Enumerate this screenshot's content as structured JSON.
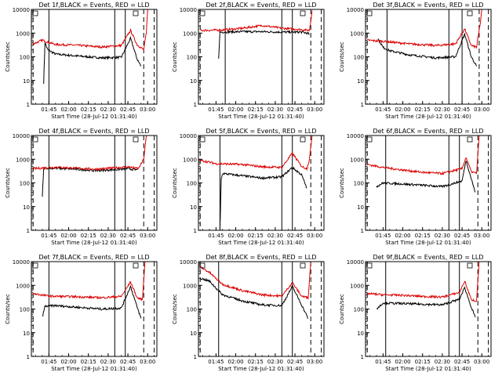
{
  "figure": {
    "start_time_label": "Start Time (28-Jul-12 01:31:40)",
    "ylabel": "Counts/sec",
    "y_ticks": [
      "1",
      "10",
      "100",
      "1000",
      "10000"
    ],
    "x_ticks": [
      "01:45",
      "02:00",
      "02:15",
      "02:30",
      "02:45",
      "03:00"
    ]
  },
  "colors": {
    "black_series": "#000000",
    "red_series": "#dd0000",
    "axes": "#000000",
    "background": "#ffffff"
  },
  "chart_data": [
    {
      "type": "line",
      "title": "Det 1f,BLACK = Events, RED = LLD",
      "xlabel": "Start Time (28-Jul-12 01:31:40)",
      "ylabel": "Counts/sec",
      "x_range": [
        "01:31:40",
        "03:07"
      ],
      "ylim": [
        1,
        10000
      ],
      "y_scale": "log",
      "vertical_lines": {
        "solid": [
          "01:45",
          "02:35",
          "02:43"
        ],
        "dashed": [
          "01:33",
          "02:57",
          "03:05"
        ]
      },
      "series": [
        {
          "color": "black",
          "points": [
            [
              "01:41",
              8
            ],
            [
              "01:42",
              400
            ],
            [
              "01:44",
              200
            ],
            [
              "01:50",
              130
            ],
            [
              "02:05",
              110
            ],
            [
              "02:25",
              90
            ],
            [
              "02:40",
              95
            ],
            [
              "02:47",
              600
            ],
            [
              "02:52",
              80
            ],
            [
              "02:55",
              40
            ]
          ]
        },
        {
          "color": "red",
          "points": [
            [
              "01:33",
              350
            ],
            [
              "01:40",
              500
            ],
            [
              "01:50",
              330
            ],
            [
              "02:05",
              310
            ],
            [
              "02:25",
              260
            ],
            [
              "02:40",
              300
            ],
            [
              "02:47",
              1300
            ],
            [
              "02:52",
              320
            ],
            [
              "02:57",
              200
            ],
            [
              "02:59",
              1000
            ],
            [
              "03:00",
              10000
            ]
          ]
        }
      ]
    },
    {
      "type": "line",
      "title": "Det 2f,BLACK = Events, RED = LLD",
      "xlabel": "Start Time (28-Jul-12 01:31:40)",
      "ylabel": "Counts/sec",
      "x_range": [
        "01:31:40",
        "03:07"
      ],
      "ylim": [
        1,
        10000
      ],
      "y_scale": "log",
      "vertical_lines": {
        "solid": [
          "01:52",
          "02:35",
          "02:43"
        ],
        "dashed": [
          "01:33",
          "02:57",
          "03:05"
        ]
      },
      "series": [
        {
          "color": "black",
          "points": [
            [
              "01:47",
              90
            ],
            [
              "01:48",
              1100
            ],
            [
              "02:05",
              1150
            ],
            [
              "02:20",
              1150
            ],
            [
              "02:35",
              1100
            ],
            [
              "02:50",
              1100
            ],
            [
              "02:54",
              1000
            ],
            [
              "02:56",
              900
            ]
          ]
        },
        {
          "color": "red",
          "points": [
            [
              "01:33",
              1300
            ],
            [
              "01:50",
              1350
            ],
            [
              "02:05",
              1600
            ],
            [
              "02:20",
              2100
            ],
            [
              "02:35",
              1600
            ],
            [
              "02:50",
              1400
            ],
            [
              "02:56",
              1300
            ],
            [
              "02:58",
              9000
            ]
          ]
        }
      ]
    },
    {
      "type": "line",
      "title": "Det 3f,BLACK = Events, RED = LLD",
      "xlabel": "Start Time (28-Jul-12 01:31:40)",
      "ylabel": "Counts/sec",
      "x_range": [
        "01:31:40",
        "03:07"
      ],
      "ylim": [
        1,
        10000
      ],
      "y_scale": "log",
      "vertical_lines": {
        "solid": [
          "01:48",
          "02:35",
          "02:45"
        ],
        "dashed": [
          "01:33",
          "02:58",
          "03:05"
        ]
      },
      "series": [
        {
          "color": "black",
          "points": [
            [
              "01:41",
              600
            ],
            [
              "01:45",
              250
            ],
            [
              "01:50",
              180
            ],
            [
              "02:05",
              120
            ],
            [
              "02:25",
              90
            ],
            [
              "02:40",
              100
            ],
            [
              "02:47",
              900
            ],
            [
              "02:52",
              100
            ],
            [
              "02:56",
              40
            ]
          ]
        },
        {
          "color": "red",
          "points": [
            [
              "01:33",
              500
            ],
            [
              "01:45",
              450
            ],
            [
              "02:05",
              350
            ],
            [
              "02:25",
              300
            ],
            [
              "02:40",
              350
            ],
            [
              "02:47",
              1500
            ],
            [
              "02:52",
              300
            ],
            [
              "02:56",
              250
            ],
            [
              "02:59",
              3000
            ],
            [
              "03:00",
              10000
            ]
          ]
        }
      ]
    },
    {
      "type": "line",
      "title": "Det 4f,BLACK = Events, RED = LLD",
      "xlabel": "Start Time (28-Jul-12 01:31:40)",
      "ylabel": "Counts/sec",
      "x_range": [
        "01:31:40",
        "03:07"
      ],
      "ylim": [
        1,
        10000
      ],
      "y_scale": "log",
      "vertical_lines": {
        "solid": [
          "01:45",
          "02:35",
          "02:43"
        ],
        "dashed": [
          "01:33",
          "02:57",
          "03:05"
        ]
      },
      "series": [
        {
          "color": "black",
          "points": [
            [
              "01:40",
              25
            ],
            [
              "01:41",
              420
            ],
            [
              "01:50",
              420
            ],
            [
              "02:05",
              380
            ],
            [
              "02:20",
              330
            ],
            [
              "02:35",
              360
            ],
            [
              "02:45",
              400
            ],
            [
              "02:52",
              350
            ]
          ]
        },
        {
          "color": "red",
          "points": [
            [
              "01:33",
              400
            ],
            [
              "01:50",
              460
            ],
            [
              "02:05",
              420
            ],
            [
              "02:20",
              380
            ],
            [
              "02:35",
              430
            ],
            [
              "02:45",
              480
            ],
            [
              "02:53",
              400
            ],
            [
              "02:57",
              1000
            ],
            [
              "02:59",
              10000
            ]
          ]
        }
      ]
    },
    {
      "type": "line",
      "title": "Det 5f,BLACK = Events, RED = LLD",
      "xlabel": "Start Time (28-Jul-12 01:31:40)",
      "ylabel": "Counts/sec",
      "x_range": [
        "01:31:40",
        "03:07"
      ],
      "ylim": [
        1,
        10000
      ],
      "y_scale": "log",
      "vertical_lines": {
        "solid": [
          "01:48",
          "02:35",
          "02:43"
        ],
        "dashed": [
          "01:33",
          "02:57",
          "03:05"
        ]
      },
      "series": [
        {
          "color": "black",
          "points": [
            [
              "01:48",
              1
            ],
            [
              "01:49",
              150
            ],
            [
              "01:50",
              250
            ],
            [
              "02:05",
              200
            ],
            [
              "02:20",
              160
            ],
            [
              "02:35",
              180
            ],
            [
              "02:43",
              450
            ],
            [
              "02:50",
              220
            ],
            [
              "02:54",
              60
            ]
          ]
        },
        {
          "color": "red",
          "points": [
            [
              "01:33",
              900
            ],
            [
              "01:45",
              650
            ],
            [
              "02:05",
              600
            ],
            [
              "02:20",
              480
            ],
            [
              "02:35",
              450
            ],
            [
              "02:43",
              1800
            ],
            [
              "02:50",
              500
            ],
            [
              "02:54",
              400
            ],
            [
              "02:56",
              1000
            ],
            [
              "02:58",
              10000
            ]
          ]
        }
      ]
    },
    {
      "type": "line",
      "title": "Det 6f,BLACK = Events, RED = LLD",
      "xlabel": "Start Time (28-Jul-12 01:31:40)",
      "ylabel": "Counts/sec",
      "x_range": [
        "01:31:40",
        "03:07"
      ],
      "ylim": [
        1,
        10000
      ],
      "y_scale": "log",
      "vertical_lines": {
        "solid": [
          "01:47",
          "02:35",
          "02:43"
        ],
        "dashed": [
          "01:33",
          "02:57",
          "03:05"
        ]
      },
      "series": [
        {
          "color": "black",
          "points": [
            [
              "01:40",
              70
            ],
            [
              "01:45",
              100
            ],
            [
              "02:00",
              90
            ],
            [
              "02:15",
              80
            ],
            [
              "02:30",
              70
            ],
            [
              "02:45",
              120
            ],
            [
              "02:48",
              900
            ],
            [
              "02:52",
              150
            ],
            [
              "02:55",
              40
            ]
          ]
        },
        {
          "color": "red",
          "points": [
            [
              "01:33",
              600
            ],
            [
              "01:45",
              450
            ],
            [
              "02:00",
              350
            ],
            [
              "02:15",
              280
            ],
            [
              "02:30",
              250
            ],
            [
              "02:45",
              400
            ],
            [
              "02:48",
              1200
            ],
            [
              "02:52",
              300
            ],
            [
              "02:56",
              250
            ],
            [
              "02:58",
              10000
            ]
          ]
        }
      ]
    },
    {
      "type": "line",
      "title": "Det 7f,BLACK = Events, RED = LLD",
      "xlabel": "Start Time (28-Jul-12 01:31:40)",
      "ylabel": "Counts/sec",
      "x_range": [
        "01:31:40",
        "03:07"
      ],
      "ylim": [
        1,
        10000
      ],
      "y_scale": "log",
      "vertical_lines": {
        "solid": [
          "01:45",
          "02:35",
          "02:43"
        ],
        "dashed": [
          "01:33",
          "02:57",
          "03:05"
        ]
      },
      "series": [
        {
          "color": "black",
          "points": [
            [
              "01:40",
              45
            ],
            [
              "01:42",
              130
            ],
            [
              "01:50",
              140
            ],
            [
              "02:05",
              120
            ],
            [
              "02:25",
              100
            ],
            [
              "02:40",
              110
            ],
            [
              "02:47",
              900
            ],
            [
              "02:52",
              120
            ],
            [
              "02:55",
              40
            ]
          ]
        },
        {
          "color": "red",
          "points": [
            [
              "01:33",
              450
            ],
            [
              "01:45",
              350
            ],
            [
              "02:05",
              330
            ],
            [
              "02:25",
              300
            ],
            [
              "02:40",
              340
            ],
            [
              "02:47",
              1400
            ],
            [
              "02:52",
              300
            ],
            [
              "02:56",
              250
            ],
            [
              "02:58",
              10000
            ]
          ]
        }
      ]
    },
    {
      "type": "line",
      "title": "Det 8f,BLACK = Events, RED = LLD",
      "xlabel": "Start Time (28-Jul-12 01:31:40)",
      "ylabel": "Counts/sec",
      "x_range": [
        "01:31:40",
        "03:07"
      ],
      "ylim": [
        1,
        10000
      ],
      "y_scale": "log",
      "vertical_lines": {
        "solid": [
          "01:47",
          "02:35",
          "02:43"
        ],
        "dashed": [
          "01:33",
          "02:57",
          "03:05"
        ]
      },
      "series": [
        {
          "color": "black",
          "points": [
            [
              "01:33",
              2000
            ],
            [
              "01:40",
              1500
            ],
            [
              "01:50",
              400
            ],
            [
              "02:05",
              220
            ],
            [
              "02:20",
              150
            ],
            [
              "02:35",
              140
            ],
            [
              "02:43",
              900
            ],
            [
              "02:50",
              150
            ],
            [
              "02:55",
              40
            ]
          ]
        },
        {
          "color": "red",
          "points": [
            [
              "01:33",
              6000
            ],
            [
              "01:40",
              3500
            ],
            [
              "01:50",
              1100
            ],
            [
              "02:05",
              600
            ],
            [
              "02:20",
              400
            ],
            [
              "02:35",
              350
            ],
            [
              "02:43",
              1300
            ],
            [
              "02:50",
              350
            ],
            [
              "02:55",
              300
            ],
            [
              "02:57",
              10000
            ]
          ]
        }
      ]
    },
    {
      "type": "line",
      "title": "Det 9f,BLACK = Events, RED = LLD",
      "xlabel": "Start Time (28-Jul-12 01:31:40)",
      "ylabel": "Counts/sec",
      "x_range": [
        "01:31:40",
        "03:07"
      ],
      "ylim": [
        1,
        10000
      ],
      "y_scale": "log",
      "vertical_lines": {
        "solid": [
          "01:47",
          "02:35",
          "02:43"
        ],
        "dashed": [
          "01:33",
          "02:57",
          "03:05"
        ]
      },
      "series": [
        {
          "color": "black",
          "points": [
            [
              "01:40",
              100
            ],
            [
              "01:45",
              180
            ],
            [
              "02:00",
              170
            ],
            [
              "02:15",
              160
            ],
            [
              "02:30",
              150
            ],
            [
              "02:43",
              260
            ],
            [
              "02:47",
              800
            ],
            [
              "02:52",
              120
            ],
            [
              "02:55",
              45
            ]
          ]
        },
        {
          "color": "red",
          "points": [
            [
              "01:33",
              450
            ],
            [
              "01:45",
              400
            ],
            [
              "02:00",
              380
            ],
            [
              "02:15",
              340
            ],
            [
              "02:30",
              320
            ],
            [
              "02:43",
              500
            ],
            [
              "02:47",
              1500
            ],
            [
              "02:52",
              250
            ],
            [
              "02:56",
              220
            ],
            [
              "02:58",
              10000
            ]
          ]
        }
      ]
    }
  ]
}
